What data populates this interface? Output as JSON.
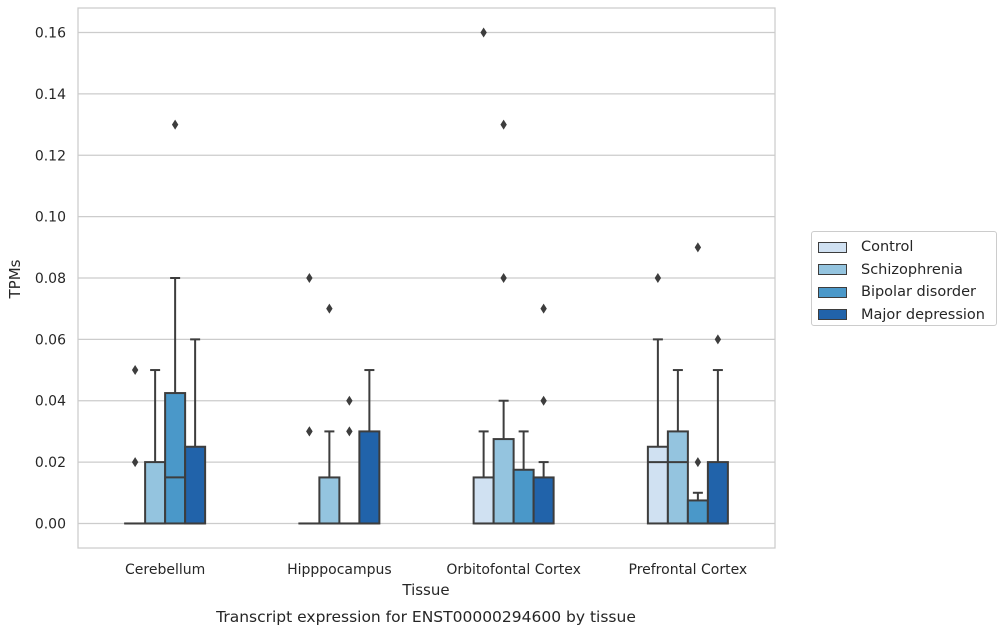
{
  "chart_data": {
    "type": "boxplot",
    "title": "Transcript expression for ENST00000294600 by tissue",
    "xlabel": "Tissue",
    "ylabel": "TPMs",
    "ylim": [
      -0.008,
      0.168
    ],
    "yticks": [
      "0.00",
      "0.02",
      "0.04",
      "0.06",
      "0.08",
      "0.10",
      "0.12",
      "0.14",
      "0.16"
    ],
    "grid": "horizontal",
    "legend_position": "right",
    "categories": [
      "Cerebellum",
      "Hipppocampus",
      "Orbitofontal Cortex",
      "Prefrontal Cortex"
    ],
    "series": [
      {
        "name": "Control",
        "color": "#d0e1f2",
        "boxes": [
          {
            "q1": 0,
            "median": 0,
            "q3": 0,
            "whisker_low": 0,
            "whisker_high": 0,
            "outliers": [
              0.02,
              0.05
            ]
          },
          {
            "q1": 0,
            "median": 0,
            "q3": 0,
            "whisker_low": 0,
            "whisker_high": 0,
            "outliers": [
              0.03,
              0.03,
              0.08
            ]
          },
          {
            "q1": 0,
            "median": 0,
            "q3": 0.015,
            "whisker_low": 0,
            "whisker_high": 0.03,
            "outliers": [
              0.16
            ]
          },
          {
            "q1": 0,
            "median": 0.02,
            "q3": 0.025,
            "whisker_low": 0,
            "whisker_high": 0.06,
            "outliers": [
              0.08
            ]
          }
        ]
      },
      {
        "name": "Schizophrenia",
        "color": "#94c4df",
        "boxes": [
          {
            "q1": 0,
            "median": 0,
            "q3": 0.02,
            "whisker_low": 0,
            "whisker_high": 0.05,
            "outliers": []
          },
          {
            "q1": 0,
            "median": 0,
            "q3": 0.015,
            "whisker_low": 0,
            "whisker_high": 0.03,
            "outliers": [
              0.07
            ]
          },
          {
            "q1": 0,
            "median": 0,
            "q3": 0.0275,
            "whisker_low": 0,
            "whisker_high": 0.04,
            "outliers": [
              0.08,
              0.13
            ]
          },
          {
            "q1": 0,
            "median": 0.02,
            "q3": 0.03,
            "whisker_low": 0,
            "whisker_high": 0.05,
            "outliers": []
          }
        ]
      },
      {
        "name": "Bipolar disorder",
        "color": "#4a98c9",
        "boxes": [
          {
            "q1": 0,
            "median": 0.015,
            "q3": 0.0425,
            "whisker_low": 0,
            "whisker_high": 0.08,
            "outliers": [
              0.13
            ]
          },
          {
            "q1": 0,
            "median": 0,
            "q3": 0,
            "whisker_low": 0,
            "whisker_high": 0,
            "outliers": [
              0.03,
              0.04
            ]
          },
          {
            "q1": 0,
            "median": 0,
            "q3": 0.0175,
            "whisker_low": 0,
            "whisker_high": 0.03,
            "outliers": []
          },
          {
            "q1": 0,
            "median": 0,
            "q3": 0.0075,
            "whisker_low": 0,
            "whisker_high": 0.01,
            "outliers": [
              0.02,
              0.09
            ]
          }
        ]
      },
      {
        "name": "Major depression",
        "color": "#2163aa",
        "boxes": [
          {
            "q1": 0,
            "median": 0,
            "q3": 0.025,
            "whisker_low": 0,
            "whisker_high": 0.06,
            "outliers": []
          },
          {
            "q1": 0,
            "median": 0,
            "q3": 0.03,
            "whisker_low": 0,
            "whisker_high": 0.05,
            "outliers": []
          },
          {
            "q1": 0,
            "median": 0,
            "q3": 0.015,
            "whisker_low": 0,
            "whisker_high": 0.02,
            "outliers": [
              0.04,
              0.07
            ]
          },
          {
            "q1": 0,
            "median": 0,
            "q3": 0.02,
            "whisker_low": 0,
            "whisker_high": 0.05,
            "outliers": [
              0.06
            ]
          }
        ]
      }
    ]
  }
}
